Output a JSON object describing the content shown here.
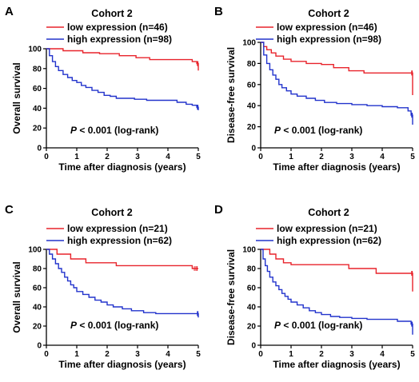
{
  "chart_data": [
    {
      "type": "line",
      "panel": "A",
      "title": "Cohort 2",
      "xlabel": "Time after diagnosis (years)",
      "ylabel": "Overall survival",
      "xlim": [
        0,
        5
      ],
      "ylim": [
        0,
        100
      ],
      "xticks": [
        "0",
        "1",
        "2",
        "3",
        "4",
        "5"
      ],
      "yticks": [
        "0",
        "20",
        "40",
        "60",
        "80",
        "100"
      ],
      "annotation_p": "P",
      "annotation_rest": " < 0.001 (log-rank)",
      "series": [
        {
          "name": "low expression (n=46)",
          "color": "#e8232b",
          "x": [
            0,
            0.55,
            1.2,
            1.75,
            2.4,
            2.95,
            3.4,
            4.6,
            4.8,
            4.95,
            5.0
          ],
          "y": [
            100,
            98,
            96,
            95,
            93,
            91,
            89,
            89,
            87,
            85,
            78
          ]
        },
        {
          "name": "high expression (n=98)",
          "color": "#2233cc",
          "x": [
            0,
            0.1,
            0.2,
            0.3,
            0.4,
            0.55,
            0.7,
            0.85,
            1.0,
            1.15,
            1.3,
            1.5,
            1.7,
            1.9,
            2.1,
            2.3,
            2.6,
            2.9,
            3.3,
            3.8,
            4.3,
            4.6,
            4.8,
            4.95,
            5.0
          ],
          "y": [
            100,
            93,
            87,
            82,
            78,
            74,
            71,
            68,
            66,
            63,
            61,
            58,
            56,
            53,
            52,
            50,
            50,
            49,
            48,
            48,
            46,
            44,
            43,
            41,
            38
          ]
        }
      ]
    },
    {
      "type": "line",
      "panel": "B",
      "title": "Cohort 2",
      "xlabel": "Time after diagnosis (years)",
      "ylabel": "Disease-free survival",
      "xlim": [
        0,
        5
      ],
      "ylim": [
        0,
        100
      ],
      "xticks": [
        "0",
        "1",
        "2",
        "3",
        "4",
        "5"
      ],
      "yticks": [
        "0",
        "20",
        "40",
        "60",
        "80",
        "100"
      ],
      "annotation_p": "P",
      "annotation_rest": " < 0.001 (log-rank)",
      "series": [
        {
          "name": "low expression (n=46)",
          "color": "#e8232b",
          "x": [
            0,
            0.1,
            0.2,
            0.35,
            0.5,
            0.75,
            1.0,
            1.5,
            2.0,
            2.4,
            2.9,
            3.4,
            4.95,
            5.0
          ],
          "y": [
            100,
            96,
            93,
            90,
            87,
            84,
            82,
            80,
            79,
            76,
            73,
            71,
            71,
            50
          ]
        },
        {
          "name": "high expression (n=98)",
          "color": "#2233cc",
          "x": [
            0,
            0.1,
            0.2,
            0.3,
            0.4,
            0.5,
            0.6,
            0.7,
            0.85,
            1.0,
            1.2,
            1.5,
            1.8,
            2.1,
            2.5,
            3.0,
            3.5,
            4.0,
            4.5,
            4.85,
            4.95,
            5.0
          ],
          "y": [
            100,
            88,
            80,
            74,
            69,
            65,
            60,
            57,
            54,
            51,
            49,
            47,
            45,
            43,
            42,
            41,
            40,
            39,
            38,
            35,
            31,
            22
          ]
        }
      ]
    },
    {
      "type": "line",
      "panel": "C",
      "title": "Cohort 2",
      "xlabel": "Time after diagnosis (years)",
      "ylabel": "Overall survival",
      "xlim": [
        0,
        5
      ],
      "ylim": [
        0,
        100
      ],
      "xticks": [
        "0",
        "1",
        "2",
        "3",
        "4",
        "5"
      ],
      "yticks": [
        "0",
        "20",
        "40",
        "60",
        "80",
        "100"
      ],
      "annotation_p": "P",
      "annotation_rest": " < 0.001 (log-rank)",
      "series": [
        {
          "name": "low expression (n=21)",
          "color": "#e8232b",
          "x": [
            0,
            0.35,
            0.8,
            1.3,
            2.3,
            4.8,
            5.0
          ],
          "y": [
            100,
            95,
            90,
            86,
            83,
            80,
            80
          ]
        },
        {
          "name": "high expression (n=62)",
          "color": "#2233cc",
          "x": [
            0,
            0.1,
            0.2,
            0.3,
            0.4,
            0.5,
            0.6,
            0.7,
            0.8,
            0.9,
            1.0,
            1.2,
            1.4,
            1.6,
            1.8,
            2.0,
            2.2,
            2.5,
            2.8,
            3.2,
            3.6,
            4.95,
            5.0
          ],
          "y": [
            100,
            95,
            90,
            85,
            80,
            76,
            71,
            67,
            63,
            60,
            56,
            53,
            50,
            47,
            45,
            42,
            40,
            38,
            36,
            34,
            33,
            33,
            29
          ]
        }
      ]
    },
    {
      "type": "line",
      "panel": "D",
      "title": "Cohort 2",
      "xlabel": "Time after diagnosis (years)",
      "ylabel": "Disease-free survival",
      "xlim": [
        0,
        5
      ],
      "ylim": [
        0,
        100
      ],
      "xticks": [
        "0",
        "1",
        "2",
        "3",
        "4",
        "5"
      ],
      "yticks": [
        "0",
        "20",
        "40",
        "60",
        "80",
        "100"
      ],
      "annotation_p": "P",
      "annotation_rest": " < 0.001 (log-rank)",
      "series": [
        {
          "name": "low expression (n=21)",
          "color": "#e8232b",
          "x": [
            0,
            0.3,
            0.5,
            0.75,
            1.0,
            2.3,
            2.9,
            3.8,
            4.95,
            5.0
          ],
          "y": [
            100,
            95,
            90,
            86,
            84,
            84,
            80,
            75,
            75,
            56
          ]
        },
        {
          "name": "high expression (n=62)",
          "color": "#2233cc",
          "x": [
            0,
            0.08,
            0.15,
            0.22,
            0.3,
            0.4,
            0.5,
            0.6,
            0.7,
            0.8,
            0.9,
            1.0,
            1.2,
            1.4,
            1.6,
            1.8,
            2.0,
            2.3,
            2.6,
            3.0,
            3.5,
            4.0,
            4.5,
            4.95,
            5.0
          ],
          "y": [
            100,
            90,
            83,
            77,
            71,
            66,
            62,
            58,
            54,
            51,
            48,
            45,
            42,
            39,
            36,
            34,
            32,
            30,
            29,
            28,
            27,
            27,
            25,
            22,
            11
          ]
        }
      ]
    }
  ]
}
